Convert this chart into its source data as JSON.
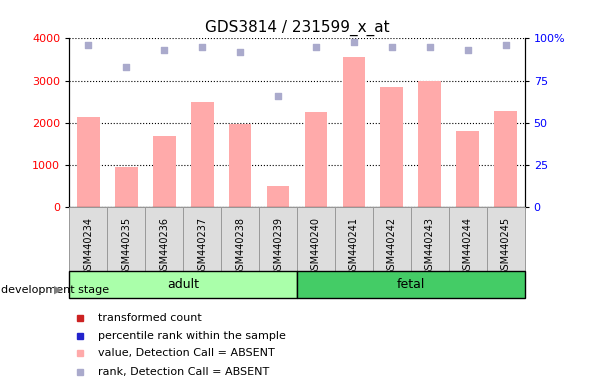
{
  "title": "GDS3814 / 231599_x_at",
  "samples": [
    "GSM440234",
    "GSM440235",
    "GSM440236",
    "GSM440237",
    "GSM440238",
    "GSM440239",
    "GSM440240",
    "GSM440241",
    "GSM440242",
    "GSM440243",
    "GSM440244",
    "GSM440245"
  ],
  "bar_values": [
    2150,
    950,
    1700,
    2500,
    1980,
    500,
    2250,
    3560,
    2850,
    3000,
    1800,
    2280
  ],
  "rank_values": [
    96,
    83,
    93,
    95,
    92,
    66,
    95,
    98,
    95,
    95,
    93,
    96
  ],
  "bar_color": "#ffaaaa",
  "rank_color": "#aaaacc",
  "adult_color": "#aaffaa",
  "fetal_color": "#44cc66",
  "ylim_left": [
    0,
    4000
  ],
  "ylim_right": [
    0,
    100
  ],
  "yticks_left": [
    0,
    1000,
    2000,
    3000,
    4000
  ],
  "yticks_right": [
    0,
    25,
    50,
    75,
    100
  ],
  "title_fontsize": 11,
  "legend_items": [
    {
      "label": "transformed count",
      "color": "#cc2222"
    },
    {
      "label": "percentile rank within the sample",
      "color": "#2222cc"
    },
    {
      "label": "value, Detection Call = ABSENT",
      "color": "#ffaaaa"
    },
    {
      "label": "rank, Detection Call = ABSENT",
      "color": "#aaaacc"
    }
  ],
  "n_adult": 6,
  "n_fetal": 6
}
